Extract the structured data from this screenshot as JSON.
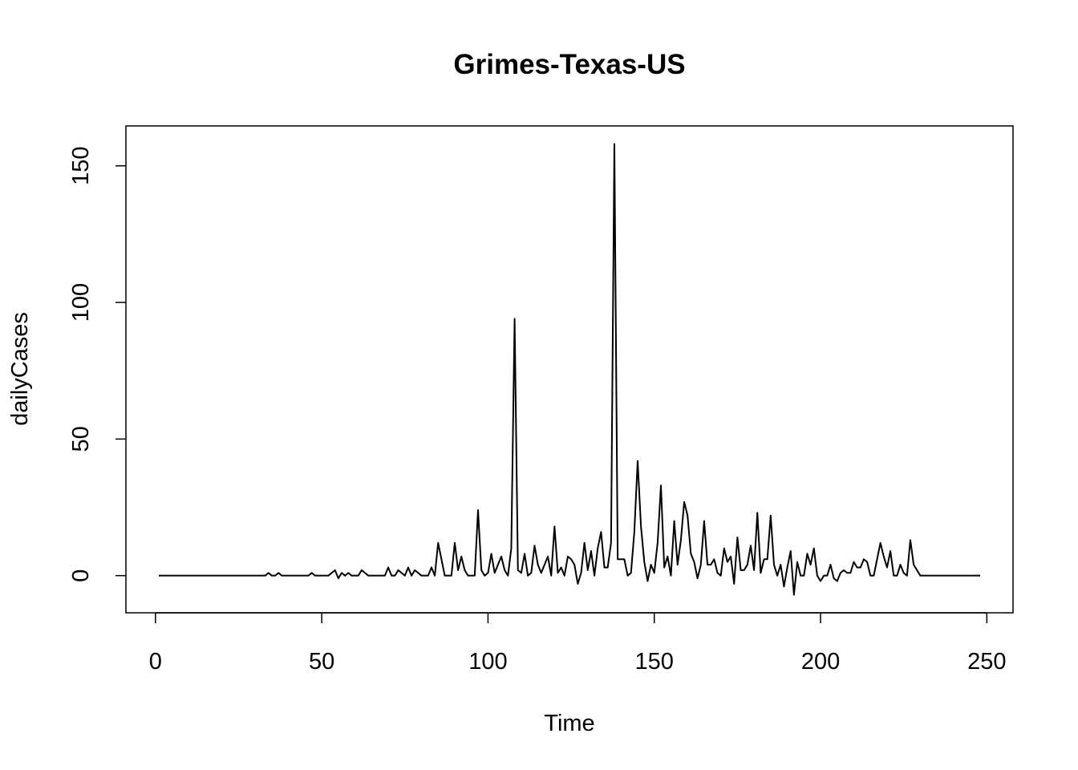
{
  "chart_data": {
    "type": "line",
    "title": "Grimes-Texas-US",
    "xlabel": "Time",
    "ylabel": "dailyCases",
    "xlim": [
      1,
      248
    ],
    "ylim": [
      -7,
      158
    ],
    "x_ticks": [
      0,
      50,
      100,
      150,
      200,
      250
    ],
    "y_ticks": [
      0,
      50,
      100,
      150
    ],
    "grid": false,
    "legend": "none",
    "series": [
      {
        "color": "#000000",
        "points": [
          [
            1,
            0
          ],
          [
            33,
            0
          ],
          [
            34,
            1
          ],
          [
            35,
            0
          ],
          [
            36,
            0
          ],
          [
            37,
            1
          ],
          [
            38,
            0
          ],
          [
            46,
            0
          ],
          [
            47,
            1
          ],
          [
            48,
            0
          ],
          [
            52,
            0
          ],
          [
            54,
            2
          ],
          [
            55,
            -1
          ],
          [
            56,
            1
          ],
          [
            57,
            0
          ],
          [
            58,
            1
          ],
          [
            59,
            0
          ],
          [
            61,
            0
          ],
          [
            62,
            2
          ],
          [
            63,
            1
          ],
          [
            64,
            0
          ],
          [
            69,
            0
          ],
          [
            70,
            3
          ],
          [
            71,
            0
          ],
          [
            72,
            0
          ],
          [
            73,
            2
          ],
          [
            74,
            1
          ],
          [
            75,
            0
          ],
          [
            76,
            3
          ],
          [
            77,
            0
          ],
          [
            78,
            2
          ],
          [
            79,
            1
          ],
          [
            80,
            0
          ],
          [
            82,
            0
          ],
          [
            83,
            3
          ],
          [
            84,
            0
          ],
          [
            85,
            12
          ],
          [
            86,
            6
          ],
          [
            87,
            0
          ],
          [
            89,
            0
          ],
          [
            90,
            12
          ],
          [
            91,
            2
          ],
          [
            92,
            7
          ],
          [
            93,
            2
          ],
          [
            94,
            0
          ],
          [
            96,
            0
          ],
          [
            97,
            24
          ],
          [
            98,
            2
          ],
          [
            99,
            0
          ],
          [
            100,
            1
          ],
          [
            101,
            8
          ],
          [
            102,
            1
          ],
          [
            103,
            4
          ],
          [
            104,
            7
          ],
          [
            105,
            2
          ],
          [
            106,
            0
          ],
          [
            107,
            10
          ],
          [
            108,
            94
          ],
          [
            109,
            2
          ],
          [
            110,
            1
          ],
          [
            111,
            8
          ],
          [
            112,
            0
          ],
          [
            113,
            1
          ],
          [
            114,
            11
          ],
          [
            115,
            4
          ],
          [
            116,
            1
          ],
          [
            117,
            4
          ],
          [
            118,
            7
          ],
          [
            119,
            0
          ],
          [
            120,
            18
          ],
          [
            121,
            1
          ],
          [
            122,
            3
          ],
          [
            123,
            0
          ],
          [
            124,
            7
          ],
          [
            125,
            6
          ],
          [
            126,
            4
          ],
          [
            127,
            -3
          ],
          [
            128,
            1
          ],
          [
            129,
            12
          ],
          [
            130,
            2
          ],
          [
            131,
            9
          ],
          [
            132,
            0
          ],
          [
            133,
            10
          ],
          [
            134,
            16
          ],
          [
            135,
            3
          ],
          [
            136,
            3
          ],
          [
            137,
            12
          ],
          [
            138,
            158
          ],
          [
            139,
            6
          ],
          [
            140,
            6
          ],
          [
            141,
            6
          ],
          [
            142,
            0
          ],
          [
            143,
            1
          ],
          [
            144,
            16
          ],
          [
            145,
            42
          ],
          [
            146,
            18
          ],
          [
            147,
            5
          ],
          [
            148,
            -2
          ],
          [
            149,
            4
          ],
          [
            150,
            1
          ],
          [
            151,
            12
          ],
          [
            152,
            33
          ],
          [
            153,
            3
          ],
          [
            154,
            7
          ],
          [
            155,
            0
          ],
          [
            156,
            20
          ],
          [
            157,
            4
          ],
          [
            158,
            13
          ],
          [
            159,
            27
          ],
          [
            160,
            22
          ],
          [
            161,
            8
          ],
          [
            162,
            5
          ],
          [
            163,
            -1
          ],
          [
            164,
            4
          ],
          [
            165,
            20
          ],
          [
            166,
            4
          ],
          [
            167,
            4
          ],
          [
            168,
            6
          ],
          [
            169,
            1
          ],
          [
            170,
            0
          ],
          [
            171,
            10
          ],
          [
            172,
            5
          ],
          [
            173,
            7
          ],
          [
            174,
            -3
          ],
          [
            175,
            14
          ],
          [
            176,
            2
          ],
          [
            177,
            2
          ],
          [
            178,
            4
          ],
          [
            179,
            11
          ],
          [
            180,
            2
          ],
          [
            181,
            23
          ],
          [
            182,
            1
          ],
          [
            183,
            6
          ],
          [
            184,
            6
          ],
          [
            185,
            22
          ],
          [
            186,
            4
          ],
          [
            187,
            0
          ],
          [
            188,
            4
          ],
          [
            189,
            -4
          ],
          [
            190,
            3
          ],
          [
            191,
            9
          ],
          [
            192,
            -7
          ],
          [
            193,
            5
          ],
          [
            194,
            0
          ],
          [
            195,
            0
          ],
          [
            196,
            8
          ],
          [
            197,
            4
          ],
          [
            198,
            10
          ],
          [
            199,
            0
          ],
          [
            200,
            -2
          ],
          [
            201,
            0
          ],
          [
            202,
            0
          ],
          [
            203,
            4
          ],
          [
            204,
            -1
          ],
          [
            205,
            -2
          ],
          [
            206,
            1
          ],
          [
            207,
            2
          ],
          [
            208,
            1
          ],
          [
            209,
            1
          ],
          [
            210,
            5
          ],
          [
            211,
            3
          ],
          [
            212,
            3
          ],
          [
            213,
            6
          ],
          [
            214,
            5
          ],
          [
            215,
            0
          ],
          [
            216,
            0
          ],
          [
            217,
            6
          ],
          [
            218,
            12
          ],
          [
            219,
            7
          ],
          [
            220,
            3
          ],
          [
            221,
            9
          ],
          [
            222,
            0
          ],
          [
            223,
            0
          ],
          [
            224,
            4
          ],
          [
            225,
            1
          ],
          [
            226,
            0
          ],
          [
            227,
            13
          ],
          [
            228,
            4
          ],
          [
            229,
            2
          ],
          [
            230,
            0
          ],
          [
            231,
            0
          ],
          [
            248,
            0
          ]
        ]
      }
    ]
  }
}
